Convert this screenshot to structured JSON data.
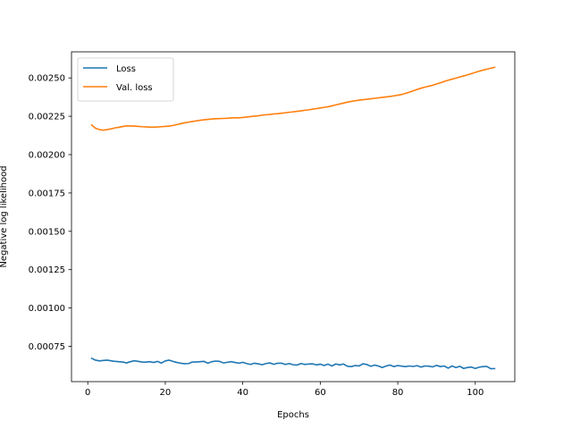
{
  "chart_data": {
    "type": "line",
    "title": "",
    "xlabel": "Epochs",
    "ylabel": "Negative log likelihood",
    "xlim": [
      -4.2,
      110.2
    ],
    "ylim": [
      0.00052,
      0.00267
    ],
    "xticks": [
      0,
      20,
      40,
      60,
      80,
      100
    ],
    "xtick_labels": [
      "0",
      "20",
      "40",
      "60",
      "80",
      "100"
    ],
    "yticks": [
      0.00075,
      0.001,
      0.00125,
      0.0015,
      0.00175,
      0.002,
      0.00225,
      0.0025
    ],
    "ytick_labels": [
      "0.00075",
      "0.00100",
      "0.00125",
      "0.00150",
      "0.00175",
      "0.00200",
      "0.00225",
      "0.00250"
    ],
    "grid": false,
    "legend_position": "upper-left",
    "series": [
      {
        "name": "Loss",
        "color": "#1f77b4",
        "x": [
          1,
          2,
          3,
          4,
          5,
          6,
          7,
          8,
          9,
          10,
          11,
          12,
          13,
          14,
          15,
          16,
          17,
          18,
          19,
          20,
          21,
          22,
          23,
          24,
          25,
          26,
          27,
          28,
          29,
          30,
          31,
          32,
          33,
          34,
          35,
          36,
          37,
          38,
          39,
          40,
          41,
          42,
          43,
          44,
          45,
          46,
          47,
          48,
          49,
          50,
          51,
          52,
          53,
          54,
          55,
          56,
          57,
          58,
          59,
          60,
          61,
          62,
          63,
          64,
          65,
          66,
          67,
          68,
          69,
          70,
          71,
          72,
          73,
          74,
          75,
          76,
          77,
          78,
          79,
          80,
          81,
          82,
          83,
          84,
          85,
          86,
          87,
          88,
          89,
          90,
          91,
          92,
          93,
          94,
          95,
          96,
          97,
          98,
          99,
          100,
          101,
          102,
          103,
          104,
          105
        ],
        "y": [
          0.000672,
          0.00066,
          0.000655,
          0.000658,
          0.00066,
          0.000656,
          0.000652,
          0.00065,
          0.000648,
          0.000642,
          0.00065,
          0.000656,
          0.000652,
          0.000648,
          0.000647,
          0.00065,
          0.000645,
          0.000652,
          0.000641,
          0.000655,
          0.00066,
          0.000652,
          0.000645,
          0.00064,
          0.000637,
          0.000638,
          0.000648,
          0.000648,
          0.00065,
          0.000652,
          0.00064,
          0.00065,
          0.000654,
          0.000652,
          0.000642,
          0.000646,
          0.00065,
          0.000645,
          0.00064,
          0.000646,
          0.000638,
          0.000632,
          0.00064,
          0.000636,
          0.00063,
          0.000638,
          0.000642,
          0.000633,
          0.00064,
          0.00064,
          0.000632,
          0.000638,
          0.00063,
          0.000628,
          0.000638,
          0.000632,
          0.000635,
          0.000636,
          0.000629,
          0.000634,
          0.000625,
          0.000634,
          0.000622,
          0.000635,
          0.000629,
          0.000635,
          0.00062,
          0.000618,
          0.000625,
          0.000622,
          0.000636,
          0.000632,
          0.00062,
          0.000628,
          0.000622,
          0.000612,
          0.000622,
          0.000628,
          0.000618,
          0.000625,
          0.000621,
          0.000618,
          0.000622,
          0.000619,
          0.000624,
          0.000615,
          0.000622,
          0.000621,
          0.000616,
          0.000626,
          0.000618,
          0.000622,
          0.000608,
          0.000622,
          0.000612,
          0.00062,
          0.000606,
          0.000612,
          0.000615,
          0.000606,
          0.000614,
          0.000618,
          0.000619,
          0.000604,
          0.000605
        ]
      },
      {
        "name": "Val. loss",
        "color": "#ff7f0e",
        "x": [
          1,
          2,
          3,
          4,
          5,
          6,
          7,
          8,
          9,
          10,
          11,
          12,
          13,
          14,
          15,
          16,
          17,
          18,
          19,
          20,
          21,
          22,
          23,
          24,
          25,
          26,
          27,
          28,
          29,
          30,
          31,
          32,
          33,
          34,
          35,
          36,
          37,
          38,
          39,
          40,
          41,
          42,
          43,
          44,
          45,
          46,
          47,
          48,
          49,
          50,
          51,
          52,
          53,
          54,
          55,
          56,
          57,
          58,
          59,
          60,
          61,
          62,
          63,
          64,
          65,
          66,
          67,
          68,
          69,
          70,
          71,
          72,
          73,
          74,
          75,
          76,
          77,
          78,
          79,
          80,
          81,
          82,
          83,
          84,
          85,
          86,
          87,
          88,
          89,
          90,
          91,
          92,
          93,
          94,
          95,
          96,
          97,
          98,
          99,
          100,
          101,
          102,
          103,
          104,
          105
        ],
        "y": [
          0.002193,
          0.002172,
          0.002163,
          0.00216,
          0.002163,
          0.002168,
          0.002174,
          0.002178,
          0.002183,
          0.002187,
          0.002187,
          0.002186,
          0.002184,
          0.002182,
          0.002181,
          0.002179,
          0.002179,
          0.00218,
          0.002182,
          0.002184,
          0.002186,
          0.00219,
          0.002196,
          0.002202,
          0.002207,
          0.002212,
          0.002216,
          0.00222,
          0.002224,
          0.002227,
          0.00223,
          0.002232,
          0.002234,
          0.002235,
          0.002236,
          0.002237,
          0.002239,
          0.00224,
          0.00224,
          0.002242,
          0.002245,
          0.002248,
          0.002251,
          0.002253,
          0.002257,
          0.00226,
          0.002262,
          0.002265,
          0.002267,
          0.00227,
          0.002273,
          0.002276,
          0.002279,
          0.002282,
          0.002285,
          0.002289,
          0.002292,
          0.002296,
          0.0023,
          0.002304,
          0.002308,
          0.002312,
          0.002318,
          0.002324,
          0.00233,
          0.002336,
          0.002342,
          0.002347,
          0.002351,
          0.002355,
          0.002358,
          0.002361,
          0.002364,
          0.002367,
          0.00237,
          0.002373,
          0.002376,
          0.002379,
          0.002383,
          0.002387,
          0.002392,
          0.002399,
          0.002407,
          0.002416,
          0.002425,
          0.002433,
          0.00244,
          0.002446,
          0.002452,
          0.00246,
          0.002468,
          0.002477,
          0.002485,
          0.002492,
          0.002499,
          0.002506,
          0.002513,
          0.00252,
          0.002528,
          0.002536,
          0.002544,
          0.002551,
          0.002557,
          0.002563,
          0.002569
        ]
      }
    ]
  }
}
